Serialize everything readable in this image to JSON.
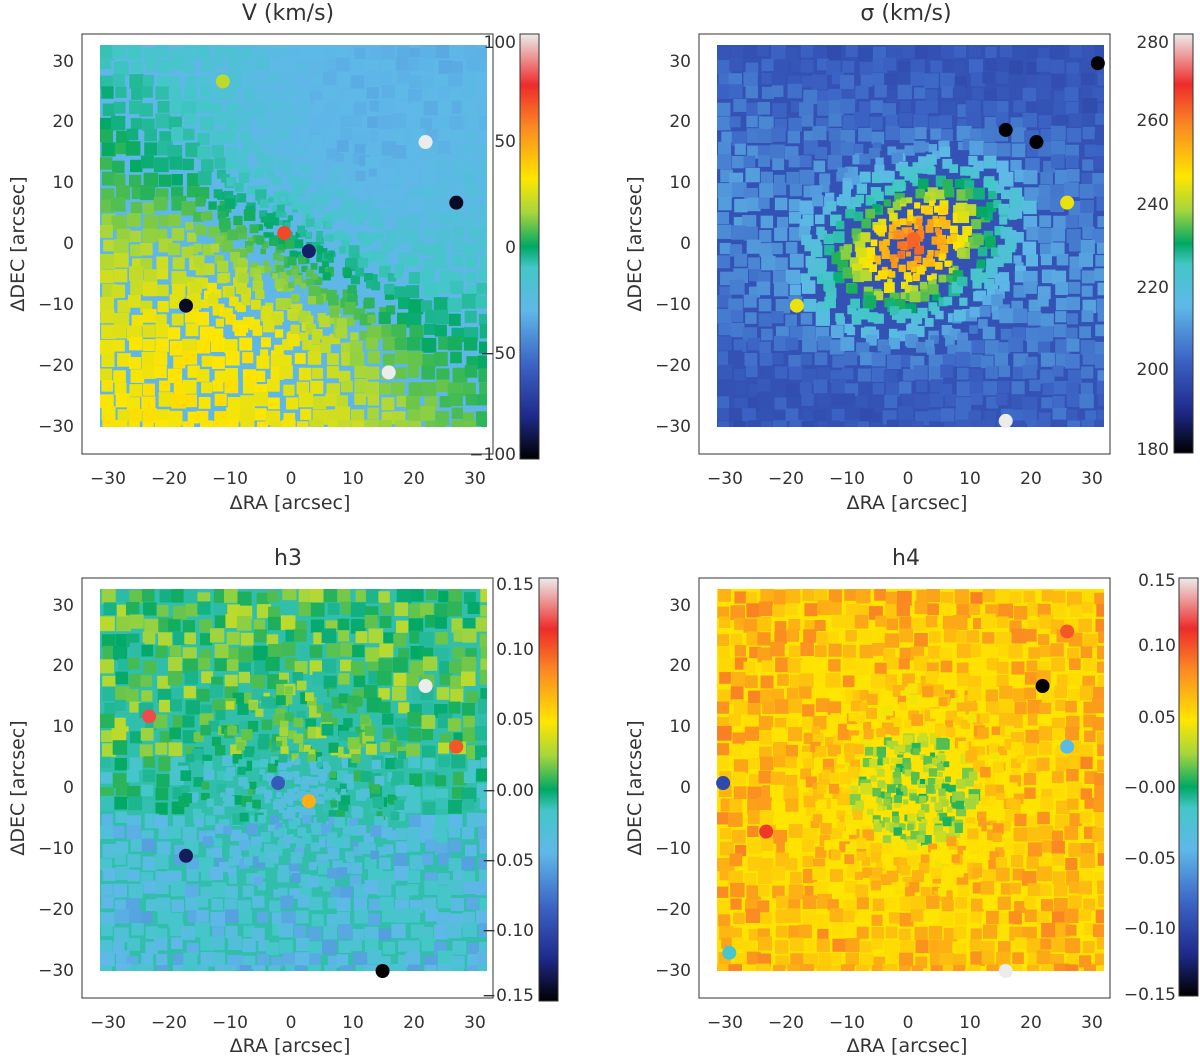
{
  "chart_data": [
    {
      "type": "heatmap",
      "title": "V (km/s)",
      "xlabel": "ΔRA [arcsec]",
      "ylabel": "ΔDEC [arcsec]",
      "xlim": [
        -35,
        33
      ],
      "ylim": [
        -35,
        33
      ],
      "x_ticks": [
        "−30",
        "−20",
        "−10",
        "0",
        "10",
        "20",
        "30"
      ],
      "y_ticks": [
        "−30",
        "−20",
        "−10",
        "0",
        "10",
        "20",
        "30"
      ],
      "colorbar": {
        "range": [
          -100,
          100
        ],
        "ticks": [
          "−100",
          "−50",
          "0",
          "50",
          "100"
        ]
      },
      "pattern": "rotation",
      "features": [
        {
          "x": -2.0,
          "y": 2.0,
          "value": 70
        },
        {
          "x": 2.0,
          "y": -1.0,
          "value": -85
        },
        {
          "x": 26.0,
          "y": 7.0,
          "value": -95
        },
        {
          "x": 21.0,
          "y": 17.0,
          "value": 100
        },
        {
          "x": -12.0,
          "y": 27.0,
          "value": 20
        },
        {
          "x": -18.0,
          "y": -10.0,
          "value": -95
        },
        {
          "x": 15.0,
          "y": -21.0,
          "value": 100
        }
      ]
    },
    {
      "type": "heatmap",
      "title": "σ (km/s)",
      "xlabel": "ΔRA [arcsec]",
      "ylabel": "ΔDEC [arcsec]",
      "xlim": [
        -35,
        33
      ],
      "ylim": [
        -35,
        33
      ],
      "x_ticks": [
        "−30",
        "−20",
        "−10",
        "0",
        "10",
        "20",
        "30"
      ],
      "y_ticks": [
        "−30",
        "−20",
        "−10",
        "0",
        "10",
        "20",
        "30"
      ],
      "colorbar": {
        "range": [
          180,
          280
        ],
        "ticks": [
          "180",
          "200",
          "220",
          "240",
          "260",
          "280"
        ]
      },
      "pattern": "dispersion",
      "features": [
        {
          "x": 0.0,
          "y": 1.0,
          "value": 262
        },
        {
          "x": 30.0,
          "y": 30.0,
          "value": 180
        },
        {
          "x": 20.0,
          "y": 17.0,
          "value": 180
        },
        {
          "x": 15.0,
          "y": 19.0,
          "value": 180
        },
        {
          "x": 25.0,
          "y": 7.0,
          "value": 244
        },
        {
          "x": -19.0,
          "y": -10.0,
          "value": 244
        },
        {
          "x": 15.0,
          "y": -29.0,
          "value": 280
        }
      ]
    },
    {
      "type": "heatmap",
      "title": "h3",
      "xlabel": "ΔRA [arcsec]",
      "ylabel": "ΔDEC [arcsec]",
      "xlim": [
        -35,
        33
      ],
      "ylim": [
        -35,
        33
      ],
      "x_ticks": [
        "−30",
        "−20",
        "−10",
        "0",
        "10",
        "20",
        "30"
      ],
      "y_ticks": [
        "−30",
        "−20",
        "−10",
        "0",
        "10",
        "20",
        "30"
      ],
      "colorbar": {
        "range": [
          -0.15,
          0.15
        ],
        "ticks": [
          "−0.15",
          "−0.10",
          "−0.05",
          "−0.00",
          "0.05",
          "0.10",
          "0.15"
        ]
      },
      "pattern": "h3",
      "features": [
        {
          "x": -3.0,
          "y": 1.0,
          "value": -0.09
        },
        {
          "x": 2.0,
          "y": -2.0,
          "value": 0.07
        },
        {
          "x": 26.0,
          "y": 7.0,
          "value": 0.1
        },
        {
          "x": -24.0,
          "y": 12.0,
          "value": 0.12
        },
        {
          "x": -18.0,
          "y": -11.0,
          "value": -0.13
        },
        {
          "x": 21.0,
          "y": 17.0,
          "value": 0.15
        },
        {
          "x": 14.0,
          "y": -30.0,
          "value": -0.15
        }
      ]
    },
    {
      "type": "heatmap",
      "title": "h4",
      "xlabel": "ΔRA [arcsec]",
      "ylabel": "ΔDEC [arcsec]",
      "xlim": [
        -35,
        33
      ],
      "ylim": [
        -35,
        33
      ],
      "x_ticks": [
        "−30",
        "−20",
        "−10",
        "0",
        "10",
        "20",
        "30"
      ],
      "y_ticks": [
        "−30",
        "−20",
        "−10",
        "0",
        "10",
        "20",
        "30"
      ],
      "colorbar": {
        "range": [
          -0.15,
          0.15
        ],
        "ticks": [
          "−0.15",
          "−0.10",
          "−0.05",
          "−0.00",
          "0.05",
          "0.10",
          "0.15"
        ]
      },
      "pattern": "h4",
      "features": [
        {
          "x": 21.0,
          "y": 17.0,
          "value": -0.15
        },
        {
          "x": -24.0,
          "y": -7.0,
          "value": 0.11
        },
        {
          "x": 25.0,
          "y": 26.0,
          "value": 0.1
        },
        {
          "x": -31.0,
          "y": 1.0,
          "value": -0.1
        },
        {
          "x": 25.0,
          "y": 7.0,
          "value": -0.04
        },
        {
          "x": 15.0,
          "y": -30.0,
          "value": 0.15
        },
        {
          "x": -30.0,
          "y": -27.0,
          "value": -0.02
        }
      ]
    }
  ]
}
